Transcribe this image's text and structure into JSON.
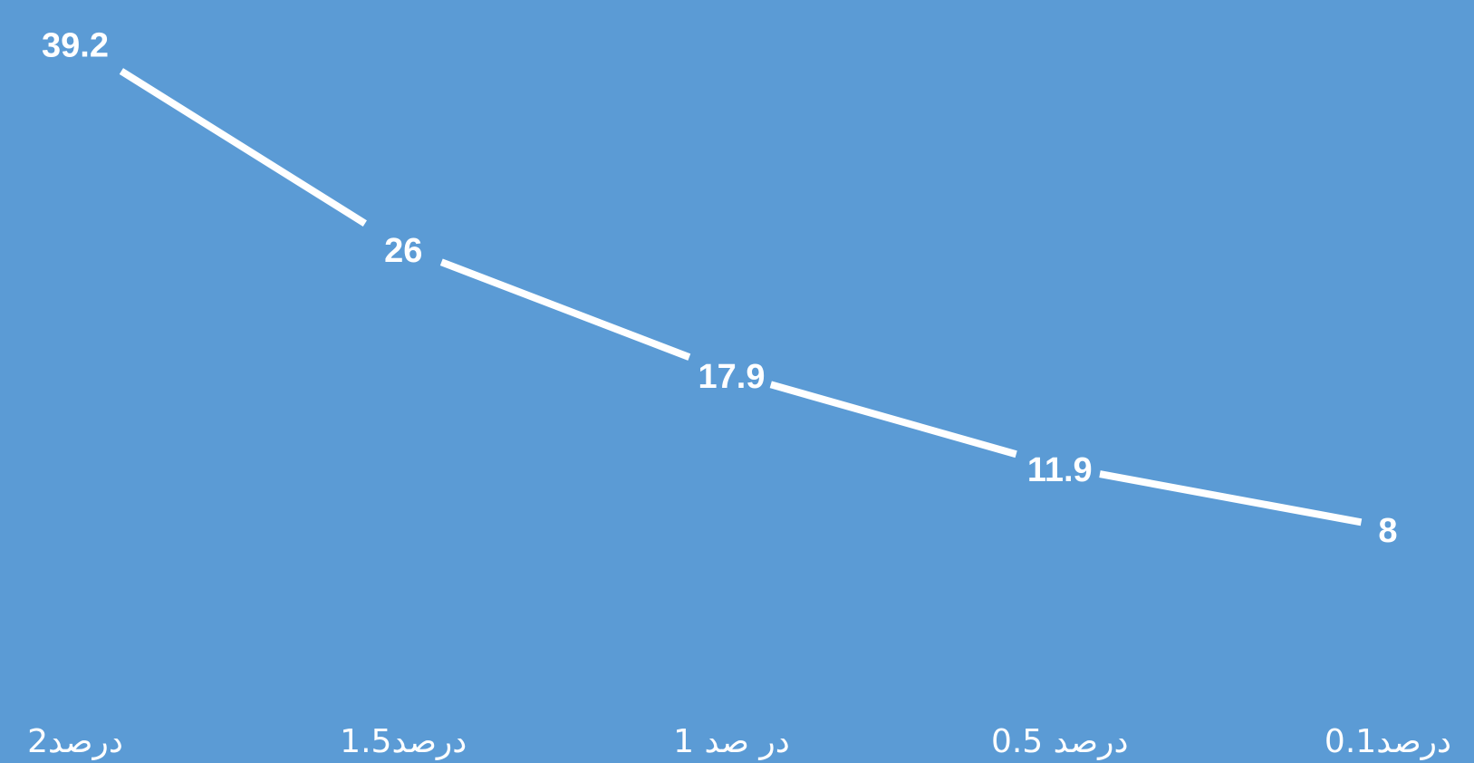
{
  "chart_data": {
    "type": "line",
    "categories": [
      "2درصد",
      "1.5درصد",
      "1 در صد",
      "0.5 درصد",
      "0.1درصد"
    ],
    "values": [
      39.2,
      26,
      17.9,
      11.9,
      8
    ],
    "value_labels": [
      "39.2",
      "26",
      "17.9",
      "11.9",
      "8"
    ],
    "title": "",
    "xlabel": "",
    "ylabel": "",
    "ylim": [
      0,
      40
    ],
    "grid": false,
    "legend": "none",
    "colors": {
      "background": "#5b9bd5",
      "line": "#ffffff",
      "text": "#ffffff"
    }
  }
}
